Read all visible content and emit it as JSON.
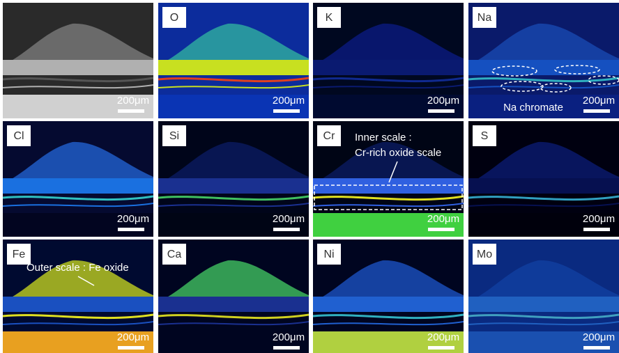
{
  "panels": [
    {
      "scale_bar": "200μm"
    },
    {
      "label": "O",
      "scale_bar": "200μm"
    },
    {
      "label": "K",
      "scale_bar": "200μm"
    },
    {
      "label": "Na",
      "scale_bar": "200μm",
      "annotation": "Na chromate"
    },
    {
      "label": "Cl",
      "scale_bar": "200μm"
    },
    {
      "label": "Si",
      "scale_bar": "200μm"
    },
    {
      "label": "Cr",
      "scale_bar": "200μm",
      "annotation": [
        "Inner scale :",
        "Cr-rich oxide scale"
      ]
    },
    {
      "label": "S",
      "scale_bar": "200μm"
    },
    {
      "label": "Fe",
      "scale_bar": "200μm",
      "annotation": "Outer scale : Fe oxide"
    },
    {
      "label": "Ca",
      "scale_bar": "200μm"
    },
    {
      "label": "Ni",
      "scale_bar": "200μm"
    },
    {
      "label": "Mo",
      "scale_bar": "200μm"
    }
  ]
}
